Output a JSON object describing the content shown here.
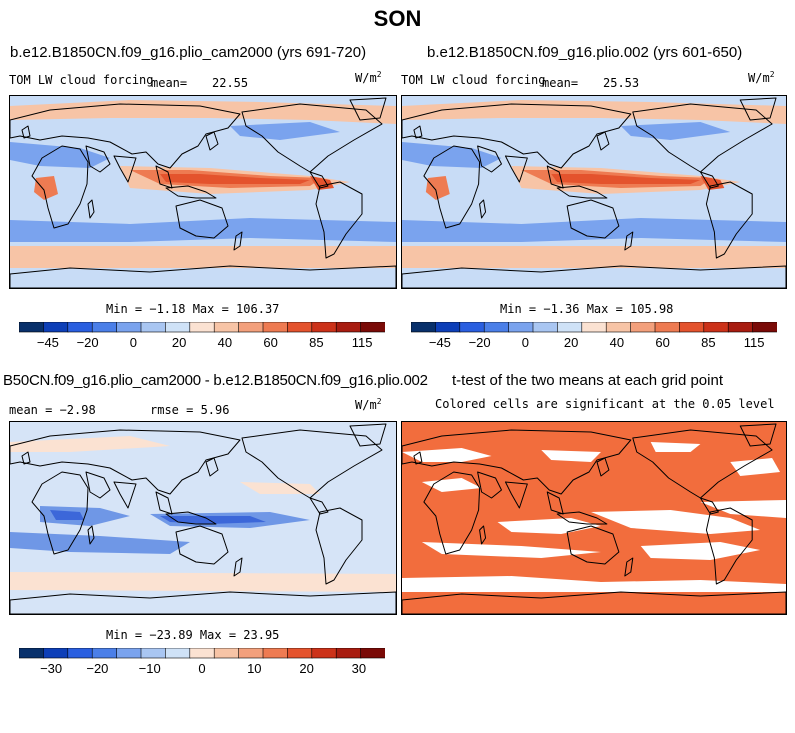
{
  "title": "SON",
  "panels": [
    {
      "id": "p1",
      "title": "b.e12.B1850CN.f09_g16.plio_cam2000 (yrs 691-720)",
      "variable": "TOM LW cloud forcing",
      "mean_label": "mean=",
      "mean_value": "22.55",
      "units_base": "W/m",
      "units_exp": "2",
      "min_max": "Min =  −1.18 Max = 106.37"
    },
    {
      "id": "p2",
      "title": "b.e12.B1850CN.f09_g16.plio.002 (yrs 601-650)",
      "variable": "TOM LW cloud forcing",
      "mean_label": "mean=",
      "mean_value": "25.53",
      "units_base": "W/m",
      "units_exp": "2",
      "min_max": "Min =  −1.36 Max = 105.98"
    },
    {
      "id": "p3",
      "title": "B50CN.f09_g16.plio_cam2000 - b.e12.B1850CN.f09_g16.plio.002",
      "mean_text": "mean =  −2.98",
      "rmse_text": "rmse =   5.96",
      "units_base": "W/m",
      "units_exp": "2",
      "min_max": "Min = −23.89 Max =  23.95"
    },
    {
      "id": "p4",
      "title": "t-test of the two means at each grid point",
      "subtitle": "Colored cells are significant at the 0.05 level"
    }
  ],
  "colorbar_main": {
    "colors": [
      "#08306b",
      "#0d3fb8",
      "#2a5fe0",
      "#4b7fe8",
      "#7aa3ee",
      "#a9c6f2",
      "#cfe2f7",
      "#fbe2d2",
      "#f7c4a6",
      "#f3a07c",
      "#ee7b52",
      "#e4532d",
      "#cc3219",
      "#a81c10",
      "#7a0a07"
    ],
    "labels": [
      "−45",
      "−20",
      "0",
      "20",
      "40",
      "60",
      "85",
      "115"
    ]
  },
  "colorbar_diff": {
    "colors": [
      "#08306b",
      "#0d3fb8",
      "#2a5fe0",
      "#4b7fe8",
      "#7aa3ee",
      "#a9c6f2",
      "#cfe2f7",
      "#fbe2d2",
      "#f7c4a6",
      "#f3a07c",
      "#ee7b52",
      "#e4532d",
      "#cc3219",
      "#a81c10",
      "#7a0a07"
    ],
    "labels": [
      "−30",
      "−20",
      "−10",
      "0",
      "10",
      "20",
      "30"
    ]
  },
  "colors": {
    "ocean_base": "#c8dcf6",
    "ocean_low": "#7aa3ee",
    "warm_mid": "#f7c4a6",
    "warm_high": "#ee7b52",
    "warm_max": "#e4532d",
    "diff_base": "#d6e4f7",
    "diff_neg": "#6f97e6",
    "diff_neg2": "#3c67d9",
    "diff_pos": "#fbe2d2",
    "signif": "#f26d3d",
    "coast": "#000000"
  }
}
